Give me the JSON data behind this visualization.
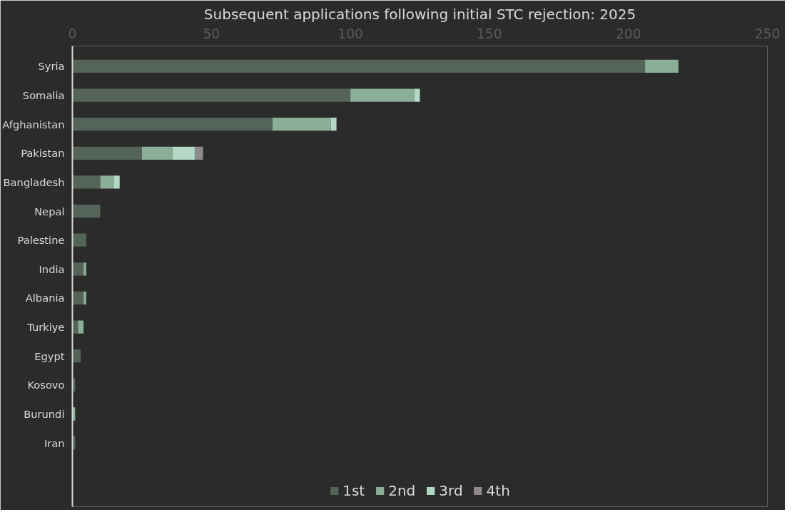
{
  "chart_data": {
    "type": "bar",
    "orientation": "horizontal",
    "stacked": true,
    "title": "Subsequent applications following initial STC rejection: 2025",
    "categories": [
      "Syria",
      "Somalia",
      "Afghanistan",
      "Pakistan",
      "Bangladesh",
      "Nepal",
      "Palestine",
      "India",
      "Albania",
      "Turkiye",
      "Egypt",
      "Kosovo",
      "Burundi",
      "Iran"
    ],
    "series": [
      {
        "name": "1st",
        "color": "#546458",
        "values": [
          206,
          100,
          72,
          25,
          10,
          10,
          5,
          4,
          4,
          2,
          3,
          1,
          0,
          1
        ]
      },
      {
        "name": "2nd",
        "color": "#8aae98",
        "values": [
          12,
          23,
          21,
          11,
          5,
          0,
          0,
          1,
          1,
          2,
          0,
          0,
          1,
          0
        ]
      },
      {
        "name": "3rd",
        "color": "#b3d8c5",
        "values": [
          0,
          2,
          2,
          8,
          2,
          0,
          0,
          0,
          0,
          0,
          0,
          0,
          0,
          0
        ]
      },
      {
        "name": "4th",
        "color": "#8e8a8b",
        "values": [
          0,
          0,
          0,
          3,
          0,
          0,
          0,
          0,
          0,
          0,
          0,
          0,
          0,
          0
        ]
      }
    ],
    "xlim": [
      0,
      250
    ],
    "xticks": [
      0,
      50,
      100,
      150,
      200,
      250
    ],
    "grid": false,
    "legend": "bottom"
  }
}
